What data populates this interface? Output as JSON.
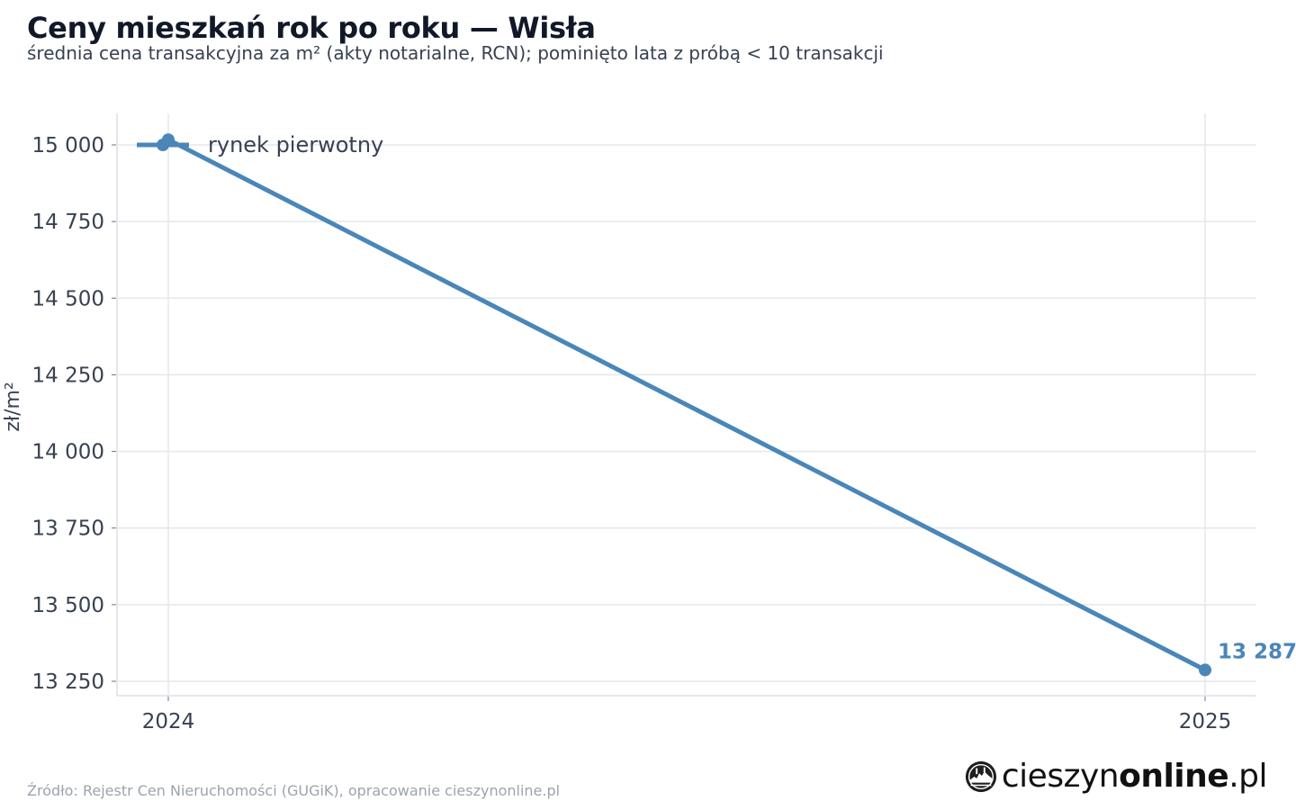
{
  "header": {
    "title": "Ceny mieszkań rok po roku — Wisła",
    "subtitle": "średnia cena transakcyjna za m² (akty notarialne, RCN); pominięto lata z próbą < 10 transakcji"
  },
  "footer": {
    "source": "Źródło: Rejestr Cen Nieruchomości (GUGiK), opracowanie cieszynonline.pl",
    "brand_part1": "cieszyn",
    "brand_part2": "online",
    "brand_part3": ".pl",
    "brand_icon": "brand-logo-icon"
  },
  "chart_data": {
    "type": "line",
    "x": [
      "2024",
      "2025"
    ],
    "series": [
      {
        "name": "rynek pierwotny",
        "values": [
          15017,
          13287
        ],
        "color": "#4a86b8"
      }
    ],
    "ylabel": "zł/m²",
    "yticks": [
      15000,
      14750,
      14500,
      14250,
      14000,
      13750,
      13500,
      13250
    ],
    "ytick_labels": [
      "15 000",
      "14 750",
      "14 500",
      "14 250",
      "14 000",
      "13 750",
      "13 500",
      "13 250"
    ],
    "ylim": [
      13200,
      15100
    ],
    "end_label": "13 287",
    "grid": true,
    "legend_position": "top-left"
  },
  "colors": {
    "series": "#4a86b8",
    "grid": "#e5e7eb",
    "axis_text": "#374151"
  }
}
